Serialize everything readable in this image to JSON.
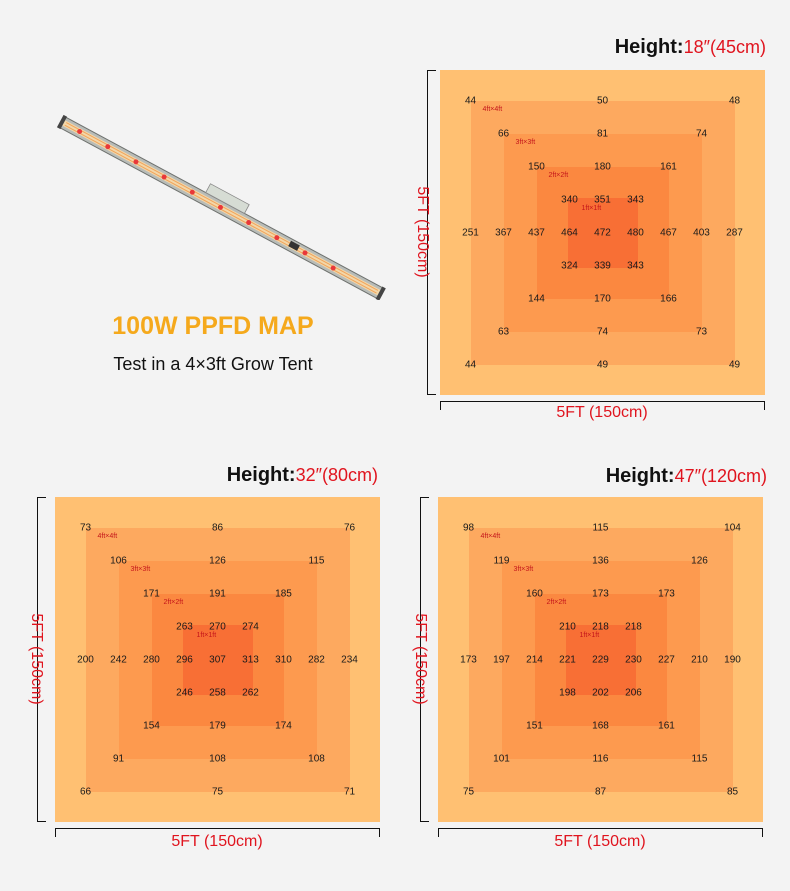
{
  "headline": "100W PPFD MAP",
  "subtitle": "Test in a 4×3ft Grow Tent",
  "dimension_label": "5FT (150cm)",
  "zone_labels": [
    "4ft×4ft",
    "3ft×3ft",
    "2ft×2ft",
    "1ft×1ft"
  ],
  "colors": {
    "outer": "#ffc072",
    "zone4": "#fda95f",
    "zone3": "#fd9a4f",
    "zone2": "#fb8840",
    "zone1": "#f86f35",
    "accent": "#e0141e",
    "headline": "#f5a91c"
  },
  "maps": [
    {
      "height_label": "Height:",
      "height_value": "18″(45cm)",
      "rows": [
        [
          44,
          50,
          48
        ],
        [
          66,
          81,
          74
        ],
        [
          150,
          180,
          161
        ],
        [
          340,
          351,
          343
        ],
        [
          251,
          367,
          437,
          464,
          472,
          480,
          467,
          403,
          287
        ],
        [
          324,
          339,
          343
        ],
        [
          144,
          170,
          166
        ],
        [
          63,
          74,
          73
        ],
        [
          44,
          49,
          49
        ]
      ]
    },
    {
      "height_label": "Height:",
      "height_value": "32″(80cm)",
      "rows": [
        [
          73,
          86,
          76
        ],
        [
          106,
          126,
          115
        ],
        [
          171,
          191,
          185
        ],
        [
          263,
          270,
          274
        ],
        [
          200,
          242,
          280,
          296,
          307,
          313,
          310,
          282,
          234
        ],
        [
          246,
          258,
          262
        ],
        [
          154,
          179,
          174
        ],
        [
          91,
          108,
          108
        ],
        [
          66,
          75,
          71
        ]
      ]
    },
    {
      "height_label": "Height:",
      "height_value": "47″(120cm)",
      "rows": [
        [
          98,
          115,
          104
        ],
        [
          119,
          136,
          126
        ],
        [
          160,
          173,
          173
        ],
        [
          210,
          218,
          218
        ],
        [
          173,
          197,
          214,
          221,
          229,
          230,
          227,
          210,
          190
        ],
        [
          198,
          202,
          206
        ],
        [
          151,
          168,
          161
        ],
        [
          101,
          116,
          115
        ],
        [
          75,
          87,
          85
        ]
      ]
    }
  ]
}
